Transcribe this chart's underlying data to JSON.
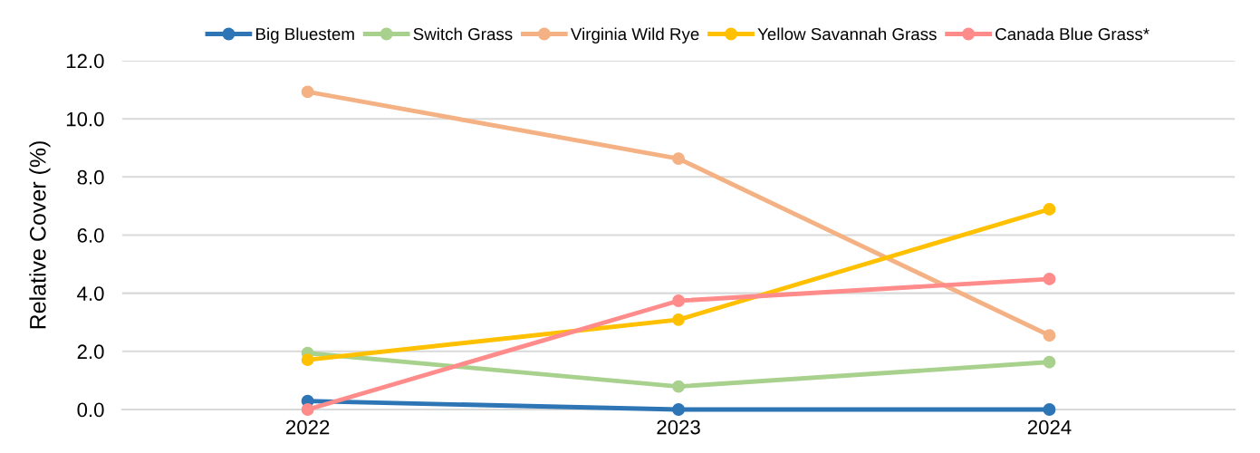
{
  "chart_data": {
    "type": "line",
    "ylabel": "Relative Cover (%)",
    "categories": [
      "2022",
      "2023",
      "2024"
    ],
    "series": [
      {
        "name": "Big Bluestem",
        "color": "#2e75b6",
        "values": [
          0.29,
          0.0,
          0.0
        ]
      },
      {
        "name": "Switch Grass",
        "color": "#a9d18e",
        "values": [
          1.94,
          0.79,
          1.63
        ]
      },
      {
        "name": "Virginia Wild Rye",
        "color": "#f4b183",
        "values": [
          10.93,
          8.63,
          2.55
        ]
      },
      {
        "name": "Yellow Savannah Grass",
        "color": "#ffc000",
        "values": [
          1.71,
          3.09,
          6.89
        ]
      },
      {
        "name": "Canada Blue Grass*",
        "color": "#ff8b8b",
        "values": [
          0.0,
          3.74,
          4.49
        ]
      }
    ],
    "ylim": [
      0,
      12
    ],
    "yticks": [
      {
        "value": 0,
        "label": "0.0"
      },
      {
        "value": 2,
        "label": "2.0"
      },
      {
        "value": 4,
        "label": "4.0"
      },
      {
        "value": 6,
        "label": "6.0"
      },
      {
        "value": 8,
        "label": "8.0"
      },
      {
        "value": 10,
        "label": "10.0"
      },
      {
        "value": 12,
        "label": "12.0"
      }
    ],
    "grid": "y",
    "legend": "top",
    "marker": "circle",
    "line_style": "solid"
  }
}
